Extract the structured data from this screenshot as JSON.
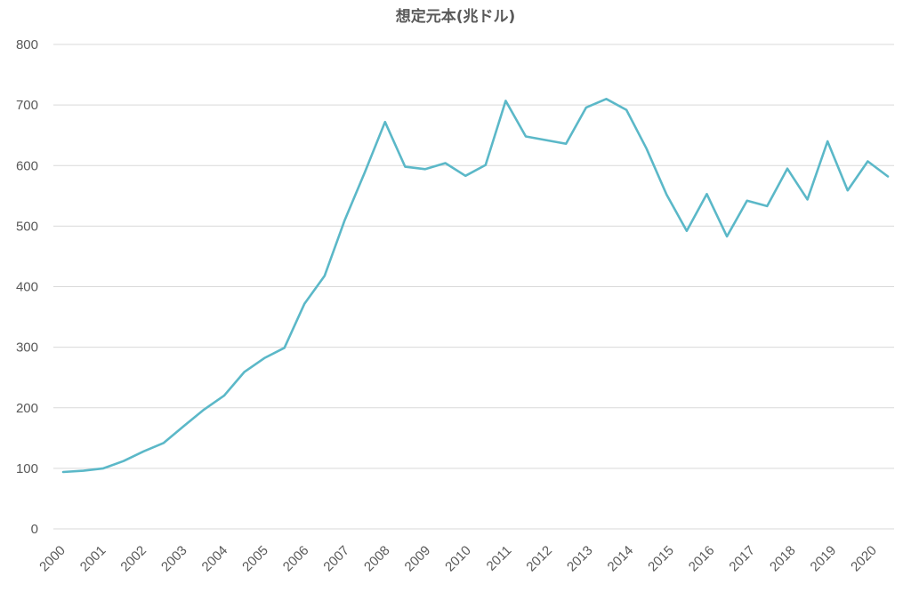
{
  "chart_data": {
    "type": "line",
    "title": "想定元本(兆ドル)",
    "xlabel": "",
    "ylabel": "",
    "ylim": [
      0,
      800
    ],
    "yticks": [
      0,
      100,
      200,
      300,
      400,
      500,
      600,
      700,
      800
    ],
    "year_labels": [
      "2000",
      "2001",
      "2002",
      "2003",
      "2004",
      "2005",
      "2006",
      "2007",
      "2008",
      "2009",
      "2010",
      "2011",
      "2012",
      "2013",
      "2014",
      "2015",
      "2016",
      "2017",
      "2018",
      "2019",
      "2020"
    ],
    "grid": true,
    "legend": "none",
    "line_color": "#5bb8c8",
    "series": [
      {
        "values": [
          94,
          96,
          100,
          112,
          128,
          142,
          170,
          197,
          220,
          259,
          282,
          299,
          372,
          418,
          510,
          589,
          672,
          598,
          594,
          604,
          583,
          601,
          707,
          648,
          642,
          636,
          696,
          710,
          692,
          628,
          552,
          492,
          553,
          483,
          542,
          533,
          595,
          544,
          640,
          559,
          607,
          582
        ]
      }
    ]
  }
}
